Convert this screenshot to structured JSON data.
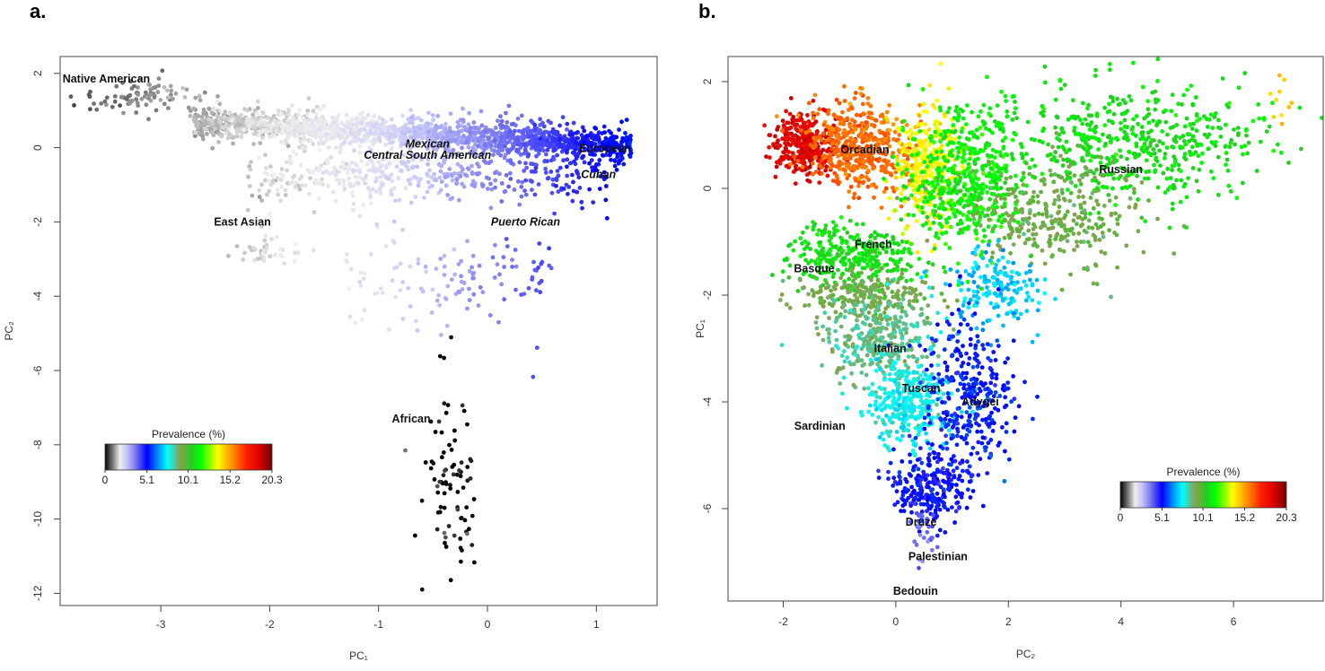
{
  "colorscale": {
    "title": "Prevalence (%)",
    "ticks": [
      "0",
      "5.1",
      "10.1",
      "15.2",
      "20.3"
    ],
    "tick_values": [
      0,
      5.1,
      10.1,
      15.2,
      20.3
    ],
    "range": [
      0,
      20.3
    ],
    "stops": [
      [
        0,
        "#000000"
      ],
      [
        1.0,
        "#808080"
      ],
      [
        1.8,
        "#eeeeee"
      ],
      [
        2.6,
        "#c8c8f8"
      ],
      [
        3.6,
        "#8080f0"
      ],
      [
        5.1,
        "#0000ff"
      ],
      [
        6.6,
        "#00a0ff"
      ],
      [
        7.6,
        "#00ffff"
      ],
      [
        9.1,
        "#8aa050"
      ],
      [
        10.6,
        "#20d020"
      ],
      [
        11.6,
        "#00ff00"
      ],
      [
        13.7,
        "#ffff00"
      ],
      [
        15.2,
        "#ffa000"
      ],
      [
        17.2,
        "#ff2000"
      ],
      [
        18.7,
        "#e00000"
      ],
      [
        20.3,
        "#700000"
      ]
    ]
  },
  "chart_data": [
    {
      "panel": "a.",
      "type": "scatter",
      "xlabel": "PC₁",
      "ylabel": "PC₂",
      "xlim": [
        -3.9,
        1.6
      ],
      "ylim": [
        -12.7,
        2.4
      ],
      "xticks": [
        -3,
        -2,
        -1,
        0,
        1
      ],
      "xtick_labels": [
        "-3",
        "-2",
        "-1",
        "0",
        "1"
      ],
      "yticks": [
        2,
        0,
        -2,
        -4,
        -6,
        -8,
        -10,
        -12
      ],
      "ytick_labels": [
        "2",
        "0",
        "-2",
        "-4",
        "-6",
        "-8",
        "-10",
        "-12"
      ],
      "legend": "bottom-left",
      "prevalence_by_pc1": [
        [
          -3.8,
          0.7
        ],
        [
          -1,
          2.1
        ],
        [
          1.4,
          5.4
        ]
      ],
      "clusters": [
        {
          "kind": "blob",
          "cx": -3.2,
          "cy": 1.35,
          "sx": 0.3,
          "sy": 0.25,
          "n": 90
        },
        {
          "kind": "band",
          "x0": -2.7,
          "x1": 1.32,
          "y0": 0.7,
          "y1": 0.05,
          "sd": 0.3,
          "n": 1700
        },
        {
          "kind": "band",
          "x0": -2.2,
          "x1": 1.1,
          "y0": -0.8,
          "y1": -0.7,
          "sd": 0.55,
          "n": 450
        },
        {
          "kind": "blob",
          "cx": -2.0,
          "cy": -2.75,
          "sx": 0.15,
          "sy": 0.2,
          "n": 40
        },
        {
          "kind": "band",
          "x0": -1.3,
          "x1": 0.6,
          "y0": -3.5,
          "y1": -3.5,
          "sd": 0.9,
          "n": 130
        },
        {
          "kind": "blob",
          "cx": -0.35,
          "cy": -9.0,
          "sx": 0.15,
          "sy": 1.2,
          "n": 85,
          "prevalence": 0.05
        }
      ],
      "labels": [
        {
          "text": "Native American",
          "x": -3.5,
          "y": 1.85,
          "italic": false
        },
        {
          "text": "Mexican",
          "x": -0.55,
          "y": 0.1,
          "italic": true
        },
        {
          "text": "Central South American",
          "x": -0.55,
          "y": -0.2,
          "italic": true
        },
        {
          "text": "European",
          "x": 1.08,
          "y": -0.02,
          "italic": false
        },
        {
          "text": "Cuban",
          "x": 1.02,
          "y": -0.72,
          "italic": true
        },
        {
          "text": "East Asian",
          "x": -2.25,
          "y": -2.0,
          "italic": false
        },
        {
          "text": "Puerto Rican",
          "x": 0.35,
          "y": -2.0,
          "italic": true
        },
        {
          "text": "African",
          "x": -0.7,
          "y": -7.3,
          "italic": false
        }
      ]
    },
    {
      "panel": "b.",
      "type": "scatter",
      "xlabel": "PC₂",
      "ylabel": "PC₁",
      "xlim": [
        -2.97,
        7.6
      ],
      "ylim": [
        -7.7,
        2.5
      ],
      "xticks": [
        -2,
        0,
        2,
        4,
        6
      ],
      "xtick_labels": [
        "-2",
        "0",
        "2",
        "4",
        "6"
      ],
      "yticks": [
        2,
        0,
        -2,
        -4,
        -6
      ],
      "ytick_labels": [
        "2",
        "0",
        "-2",
        "-4",
        "-6"
      ],
      "legend": "bottom-right",
      "clusters": [
        {
          "kind": "blob",
          "cx": -1.65,
          "cy": 0.8,
          "sx": 0.3,
          "sy": 0.3,
          "n": 320,
          "prevalence": 18.6
        },
        {
          "kind": "blob",
          "cx": -0.6,
          "cy": 0.8,
          "sx": 0.45,
          "sy": 0.4,
          "n": 450,
          "prevalence": 16.0
        },
        {
          "kind": "blob",
          "cx": 0.55,
          "cy": 0.4,
          "sx": 0.3,
          "sy": 0.55,
          "n": 320,
          "prevalence": 13.8
        },
        {
          "kind": "blob",
          "cx": 1.3,
          "cy": 0.2,
          "sx": 0.5,
          "sy": 0.65,
          "n": 520,
          "prevalence": 11.4
        },
        {
          "kind": "blob",
          "cx": 4.3,
          "cy": 0.9,
          "sx": 1.1,
          "sy": 0.55,
          "n": 520,
          "prevalence": 11.0
        },
        {
          "kind": "blob",
          "cx": 2.8,
          "cy": -0.5,
          "sx": 0.8,
          "sy": 0.5,
          "n": 320,
          "prevalence": 9.4
        },
        {
          "kind": "blob",
          "cx": -0.7,
          "cy": -1.3,
          "sx": 0.6,
          "sy": 0.3,
          "n": 330,
          "prevalence": 11.0
        },
        {
          "kind": "blob",
          "cx": -0.6,
          "cy": -2.0,
          "sx": 0.6,
          "sy": 0.2,
          "n": 220,
          "prevalence": 9.3
        },
        {
          "kind": "blob",
          "cx": -0.3,
          "cy": -2.8,
          "sx": 0.5,
          "sy": 0.4,
          "n": 320,
          "prevalence": 8.6
        },
        {
          "kind": "blob",
          "cx": 1.8,
          "cy": -1.9,
          "sx": 0.45,
          "sy": 0.35,
          "n": 170,
          "prevalence": 7.0
        },
        {
          "kind": "blob",
          "cx": 0.2,
          "cy": -4.0,
          "sx": 0.35,
          "sy": 0.4,
          "n": 320,
          "prevalence": 7.7
        },
        {
          "kind": "blob",
          "cx": 1.3,
          "cy": -3.8,
          "sx": 0.4,
          "sy": 0.7,
          "n": 320,
          "prevalence": 5.3
        },
        {
          "kind": "blob",
          "cx": 0.6,
          "cy": -5.6,
          "sx": 0.35,
          "sy": 0.35,
          "n": 260,
          "prevalence": 5.0
        },
        {
          "kind": "blob",
          "cx": 0.5,
          "cy": -6.5,
          "sx": 0.15,
          "sy": 0.3,
          "n": 30,
          "prevalence": 3.8
        },
        {
          "kind": "blob",
          "cx": 6.9,
          "cy": 1.5,
          "sx": 0.2,
          "sy": 0.3,
          "n": 10,
          "prevalence": 14.5
        }
      ],
      "labels": [
        {
          "text": "Orcadian",
          "x": -0.55,
          "y": 0.72,
          "italic": false
        },
        {
          "text": "Russian",
          "x": 4.0,
          "y": 0.35,
          "italic": false
        },
        {
          "text": "French",
          "x": -0.4,
          "y": -1.05,
          "italic": false
        },
        {
          "text": "Basque",
          "x": -1.45,
          "y": -1.5,
          "italic": false
        },
        {
          "text": "Italian",
          "x": -0.1,
          "y": -3.0,
          "italic": false
        },
        {
          "text": "Tuscan",
          "x": 0.45,
          "y": -3.75,
          "italic": false
        },
        {
          "text": "Adygei",
          "x": 1.5,
          "y": -4.0,
          "italic": false
        },
        {
          "text": "Sardinian",
          "x": -1.35,
          "y": -4.45,
          "italic": false
        },
        {
          "text": "Druze",
          "x": 0.45,
          "y": -6.25,
          "italic": false
        },
        {
          "text": "Palestinian",
          "x": 0.75,
          "y": -6.9,
          "italic": false
        },
        {
          "text": "Bedouin",
          "x": 0.35,
          "y": -7.55,
          "italic": false
        }
      ]
    }
  ]
}
